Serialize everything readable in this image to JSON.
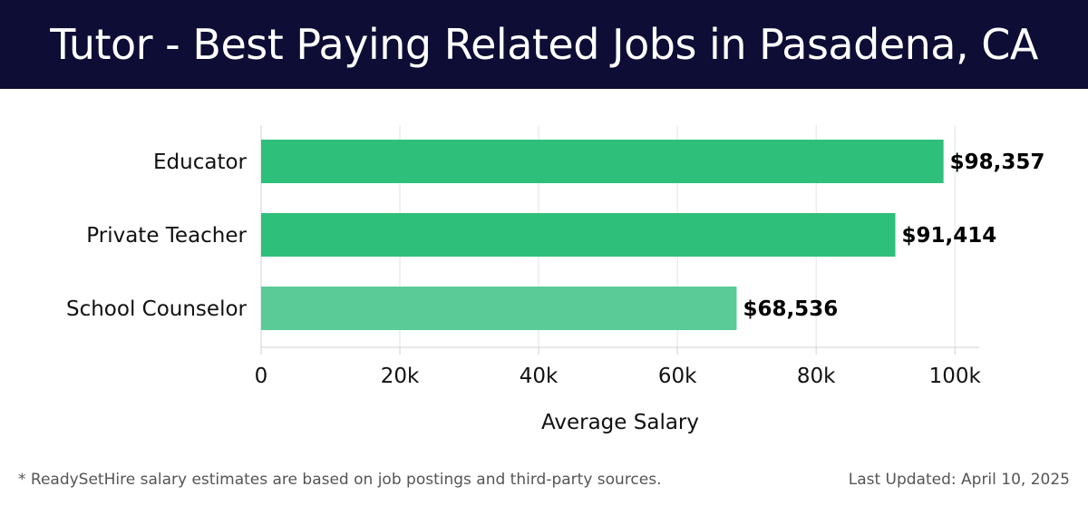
{
  "header": {
    "title": "Tutor - Best Paying Related Jobs in Pasadena, CA"
  },
  "footer": {
    "note": "* ReadySetHire salary estimates are based on job postings and third-party sources.",
    "updated": "Last Updated: April 10, 2025"
  },
  "colors": {
    "header_bg": "#0d0d35",
    "bar": "#2ebf7a",
    "bar_light": "#5acb97"
  },
  "chart_data": {
    "type": "bar",
    "orientation": "horizontal",
    "categories": [
      "Educator",
      "Private Teacher",
      "School Counselor"
    ],
    "values": [
      98357,
      91414,
      68536
    ],
    "value_labels": [
      "$98,357",
      "$91,414",
      "$68,536"
    ],
    "xlabel": "Average Salary",
    "xlim": [
      0,
      103500
    ],
    "xticks": [
      0,
      20000,
      40000,
      60000,
      80000,
      100000
    ],
    "xtick_labels": [
      "0",
      "20k",
      "40k",
      "60k",
      "80k",
      "100k"
    ],
    "grid": true
  }
}
